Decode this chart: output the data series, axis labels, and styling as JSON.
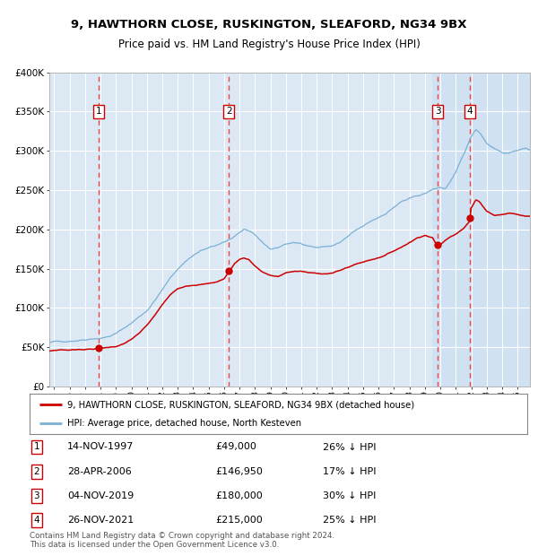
{
  "title": "9, HAWTHORN CLOSE, RUSKINGTON, SLEAFORD, NG34 9BX",
  "subtitle": "Price paid vs. HM Land Registry's House Price Index (HPI)",
  "background_color": "#ffffff",
  "plot_bg_color": "#dce9f5",
  "plot_bg_color_right": "#c8ddf0",
  "grid_color": "#ffffff",
  "ylim": [
    0,
    400000
  ],
  "yticks": [
    0,
    50000,
    100000,
    150000,
    200000,
    250000,
    300000,
    350000,
    400000
  ],
  "ytick_labels": [
    "£0",
    "£50K",
    "£100K",
    "£150K",
    "£200K",
    "£250K",
    "£300K",
    "£350K",
    "£400K"
  ],
  "xlim_start": 1994.7,
  "xlim_end": 2025.8,
  "xticks": [
    1995,
    1996,
    1997,
    1998,
    1999,
    2000,
    2001,
    2002,
    2003,
    2004,
    2005,
    2006,
    2007,
    2008,
    2009,
    2010,
    2011,
    2012,
    2013,
    2014,
    2015,
    2016,
    2017,
    2018,
    2019,
    2020,
    2021,
    2022,
    2023,
    2024,
    2025
  ],
  "sale_points": [
    {
      "num": 1,
      "year": 1997.87,
      "price": 49000,
      "date": "14-NOV-1997",
      "label": "£49,000",
      "pct": "26%",
      "dir": "↓"
    },
    {
      "num": 2,
      "year": 2006.32,
      "price": 146950,
      "date": "28-APR-2006",
      "label": "£146,950",
      "pct": "17%",
      "dir": "↓"
    },
    {
      "num": 3,
      "year": 2019.84,
      "price": 180000,
      "date": "04-NOV-2019",
      "label": "£180,000",
      "pct": "30%",
      "dir": "↓"
    },
    {
      "num": 4,
      "year": 2021.9,
      "price": 215000,
      "date": "26-NOV-2021",
      "label": "£215,000",
      "pct": "25%",
      "dir": "↓"
    }
  ],
  "red_line_color": "#cc0000",
  "blue_line_color": "#7ab0d4",
  "marker_color": "#cc0000",
  "vline_color": "#ee4444",
  "shade_start": 2019.5,
  "legend_line1": "9, HAWTHORN CLOSE, RUSKINGTON, SLEAFORD, NG34 9BX (detached house)",
  "legend_line2": "HPI: Average price, detached house, North Kesteven",
  "footer": "Contains HM Land Registry data © Crown copyright and database right 2024.\nThis data is licensed under the Open Government Licence v3.0."
}
